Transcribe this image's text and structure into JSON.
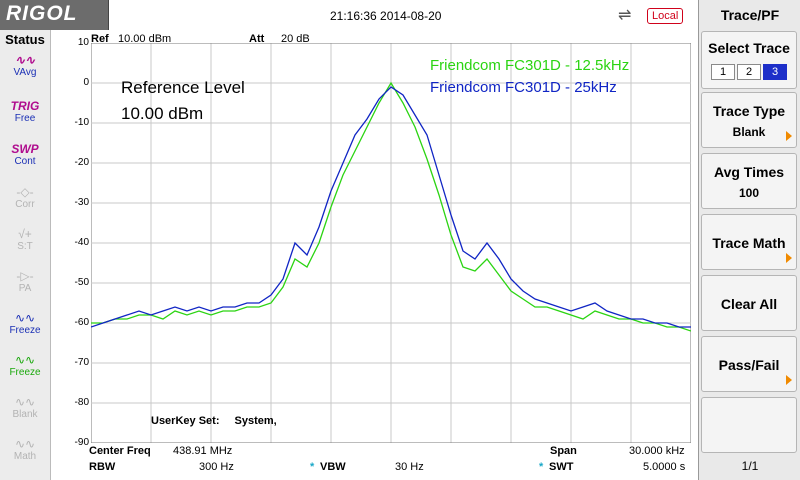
{
  "header": {
    "brand": "RIGOL",
    "timestamp": "21:16:36 2014-08-20",
    "remote_badge": "Local",
    "usb_icon": "usb-icon"
  },
  "status_panel": {
    "title": "Status",
    "items": [
      {
        "icon": "VAvg",
        "label": "",
        "state": "enabled"
      },
      {
        "icon": "TRIG",
        "label": "Free",
        "state": "enabled"
      },
      {
        "icon": "SWP",
        "label": "Cont",
        "state": "enabled"
      },
      {
        "icon": "",
        "label": "Corr",
        "state": "disabled"
      },
      {
        "icon": "",
        "label": "S:T",
        "state": "disabled"
      },
      {
        "icon": "",
        "label": "PA",
        "state": "disabled"
      },
      {
        "icon": "",
        "label": "Freeze",
        "state": "enabled"
      },
      {
        "icon": "",
        "label": "Freeze",
        "state": "enabled-green"
      },
      {
        "icon": "",
        "label": "Blank",
        "state": "disabled"
      },
      {
        "icon": "",
        "label": "Math",
        "state": "disabled"
      }
    ]
  },
  "display": {
    "ref": {
      "label": "Ref",
      "value": "10.00 dBm"
    },
    "att": {
      "label": "Att",
      "value": "20 dB"
    },
    "y_ticks": [
      "10",
      "0",
      "-10",
      "-20",
      "-30",
      "-40",
      "-50",
      "-60",
      "-70",
      "-80",
      "-90"
    ],
    "reference_annotation_line1": "Reference Level",
    "reference_annotation_line2": "10.00 dBm",
    "legend": [
      {
        "name": "Friendcom FC301D - 12.5kHz",
        "color": "#2bd412"
      },
      {
        "name": "Friendcom FC301D - 25kHz",
        "color": "#1025c4"
      }
    ],
    "userkey_label": "UserKey Set:",
    "userkey_value": "System,"
  },
  "settings": {
    "center_freq": {
      "label": "Center Freq",
      "value": "438.91 MHz"
    },
    "span": {
      "label": "Span",
      "value": "30.000 kHz"
    },
    "rbw": {
      "label": "RBW",
      "value": "300 Hz"
    },
    "vbw": {
      "label": "VBW",
      "value": "30 Hz",
      "marker": "*"
    },
    "swt": {
      "label": "SWT",
      "value": "5.0000 s",
      "marker": "*"
    }
  },
  "softkeys": {
    "menu_title": "Trace/PF",
    "select_trace": {
      "label": "Select Trace",
      "options": [
        "1",
        "2",
        "3"
      ],
      "selected": "3"
    },
    "trace_type": {
      "label": "Trace Type",
      "value": "Blank"
    },
    "avg_times": {
      "label": "Avg Times",
      "value": "100"
    },
    "trace_math": {
      "label": "Trace Math"
    },
    "clear_all": {
      "label": "Clear All"
    },
    "pass_fail": {
      "label": "Pass/Fail"
    },
    "page": "1/1"
  },
  "chart_data": {
    "type": "line",
    "xlabel": "",
    "ylabel": "",
    "ylim": [
      -90,
      10
    ],
    "x_divisions": 10,
    "y_unit": "dBm",
    "grid": true,
    "series": [
      {
        "name": "Friendcom FC301D - 12.5kHz",
        "color": "#2bd412",
        "x": [
          0,
          0.2,
          0.4,
          0.6,
          0.8,
          1.0,
          1.2,
          1.4,
          1.6,
          1.8,
          2.0,
          2.2,
          2.4,
          2.6,
          2.8,
          3.0,
          3.2,
          3.4,
          3.6,
          3.8,
          4.0,
          4.2,
          4.4,
          4.6,
          4.8,
          5.0,
          5.2,
          5.4,
          5.6,
          5.8,
          6.0,
          6.2,
          6.4,
          6.6,
          6.8,
          7.0,
          7.2,
          7.4,
          7.6,
          7.8,
          8.0,
          8.2,
          8.4,
          8.6,
          8.8,
          9.0,
          9.2,
          9.4,
          9.6,
          9.8,
          10.0
        ],
        "y": [
          -60,
          -60,
          -59,
          -59,
          -58,
          -58,
          -59,
          -57,
          -58,
          -57,
          -58,
          -57,
          -57,
          -56,
          -56,
          -55,
          -51,
          -44,
          -46,
          -40,
          -31,
          -23,
          -17,
          -11,
          -5,
          0,
          -5,
          -11,
          -19,
          -28,
          -38,
          -46,
          -47,
          -44,
          -48,
          -52,
          -54,
          -56,
          -56,
          -57,
          -58,
          -59,
          -57,
          -58,
          -59,
          -59,
          -60,
          -60,
          -61,
          -61,
          -62
        ]
      },
      {
        "name": "Friendcom FC301D - 25kHz",
        "color": "#1025c4",
        "x": [
          0,
          0.2,
          0.4,
          0.6,
          0.8,
          1.0,
          1.2,
          1.4,
          1.6,
          1.8,
          2.0,
          2.2,
          2.4,
          2.6,
          2.8,
          3.0,
          3.2,
          3.4,
          3.6,
          3.8,
          4.0,
          4.2,
          4.4,
          4.6,
          4.8,
          5.0,
          5.2,
          5.4,
          5.6,
          5.8,
          6.0,
          6.2,
          6.4,
          6.6,
          6.8,
          7.0,
          7.2,
          7.4,
          7.6,
          7.8,
          8.0,
          8.2,
          8.4,
          8.6,
          8.8,
          9.0,
          9.2,
          9.4,
          9.6,
          9.8,
          10.0
        ],
        "y": [
          -61,
          -60,
          -59,
          -58,
          -57,
          -58,
          -57,
          -56,
          -57,
          -56,
          -57,
          -56,
          -56,
          -55,
          -55,
          -53,
          -49,
          -40,
          -43,
          -36,
          -27,
          -20,
          -13,
          -9,
          -4,
          -1,
          -3,
          -8,
          -13,
          -23,
          -33,
          -42,
          -44,
          -40,
          -44,
          -49,
          -52,
          -54,
          -55,
          -56,
          -57,
          -56,
          -55,
          -57,
          -58,
          -59,
          -59,
          -60,
          -60,
          -61,
          -61
        ]
      }
    ]
  }
}
